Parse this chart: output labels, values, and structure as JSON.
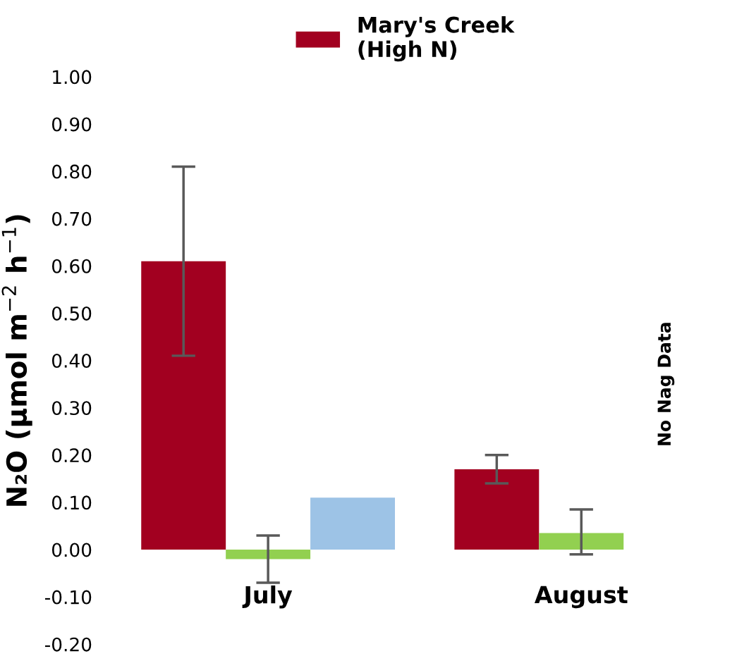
{
  "chart_data": {
    "type": "bar",
    "ylabel": "N₂O (µmol m$^{−2}$ h$^{−1}$)",
    "categories": [
      "July",
      "August"
    ],
    "series": [
      {
        "name": "Mary's Creek\n(High N)",
        "color": "#a20020",
        "values": [
          0.61,
          0.17
        ],
        "errors": [
          [
            0.41,
            0.81
          ],
          [
            0.14,
            0.2
          ]
        ]
      },
      {
        "color": "#92d050",
        "values": [
          -0.02,
          0.035
        ],
        "errors": [
          [
            -0.07,
            0.03
          ],
          [
            -0.01,
            0.085
          ]
        ]
      },
      {
        "color": "#9dc3e6",
        "values": [
          0.11,
          null
        ]
      }
    ],
    "annotations": [
      "No Nag Data"
    ],
    "ylim": [
      -0.2,
      1.0
    ],
    "yticks": [
      {
        "value": -0.2,
        "label": "-0.20"
      },
      {
        "value": -0.1,
        "label": "-0.10"
      },
      {
        "value": 0,
        "label": "0.00"
      },
      {
        "value": 0.1,
        "label": "0.10"
      },
      {
        "value": 0.2,
        "label": "0.20"
      },
      {
        "value": 0.3,
        "label": "0.30"
      },
      {
        "value": 0.4,
        "label": "0.40"
      },
      {
        "value": 0.5,
        "label": "0.50"
      },
      {
        "value": 0.6,
        "label": "0.60"
      },
      {
        "value": 0.7,
        "label": "0.70"
      },
      {
        "value": 0.8,
        "label": "0.80"
      },
      {
        "value": 0.9,
        "label": "0.90"
      },
      {
        "value": 1.0,
        "label": "1.00"
      }
    ],
    "legend": "top"
  }
}
